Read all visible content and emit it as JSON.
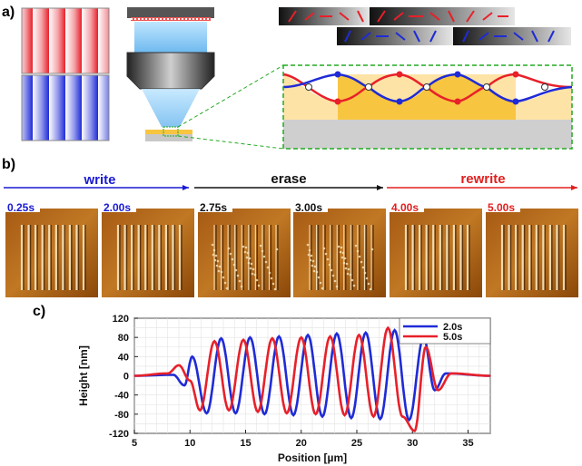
{
  "panel_labels": {
    "a": "a)",
    "b": "b)",
    "c": "c)"
  },
  "panel_b": {
    "stages": [
      {
        "label": "write",
        "color": "#1a1ad4"
      },
      {
        "label": "erase",
        "color": "#111111"
      },
      {
        "label": "rewrite",
        "color": "#e0201e"
      }
    ],
    "snapshots": [
      {
        "time": "0.25s",
        "color": "#1a1ad4"
      },
      {
        "time": "2.00s",
        "color": "#1a1ad4"
      },
      {
        "time": "2.75s",
        "color": "#111111"
      },
      {
        "time": "3.00s",
        "color": "#111111"
      },
      {
        "time": "4.00s",
        "color": "#e0201e"
      },
      {
        "time": "5.00s",
        "color": "#e0201e"
      }
    ]
  },
  "colors": {
    "blue": "#1f2bd6",
    "red": "#e8202a",
    "dashed_box": "#22aa22",
    "fill": "#f7c540"
  },
  "chart_data": {
    "type": "line",
    "xlabel": "Position [µm]",
    "ylabel": "Height [nm]",
    "xlim": [
      5,
      37
    ],
    "ylim": [
      -120,
      120
    ],
    "xticks": [
      5,
      10,
      15,
      20,
      25,
      30,
      35
    ],
    "yticks": [
      120,
      80,
      40,
      0,
      -40,
      -80,
      -120
    ],
    "grid": true,
    "legend_position": "top-right",
    "series": [
      {
        "name": "2.0s",
        "color": "#1f2bd6",
        "x": [
          5,
          8.5,
          9.5,
          10.2,
          11.5,
          12.8,
          14.1,
          15.4,
          16.7,
          18.0,
          19.3,
          20.6,
          21.9,
          23.2,
          24.5,
          25.8,
          27.1,
          28.4,
          29.7,
          31.0,
          32.0,
          33.0,
          37
        ],
        "y": [
          0,
          2,
          -20,
          40,
          -78,
          78,
          -78,
          80,
          -80,
          82,
          -82,
          85,
          -85,
          88,
          -88,
          90,
          -90,
          95,
          -92,
          80,
          -30,
          5,
          0
        ]
      },
      {
        "name": "5.0s",
        "color": "#e8202a",
        "x": [
          5,
          8.0,
          9.0,
          10.0,
          10.9,
          12.2,
          13.5,
          14.8,
          16.1,
          17.4,
          18.7,
          20.0,
          21.3,
          22.6,
          23.9,
          25.2,
          26.5,
          27.8,
          29.1,
          30.2,
          31.2,
          32.3,
          33.5,
          37
        ],
        "y": [
          0,
          5,
          22,
          -10,
          -72,
          72,
          -72,
          75,
          -75,
          78,
          -78,
          80,
          -80,
          82,
          -82,
          85,
          -85,
          100,
          -85,
          -115,
          60,
          -30,
          5,
          0
        ]
      }
    ]
  }
}
